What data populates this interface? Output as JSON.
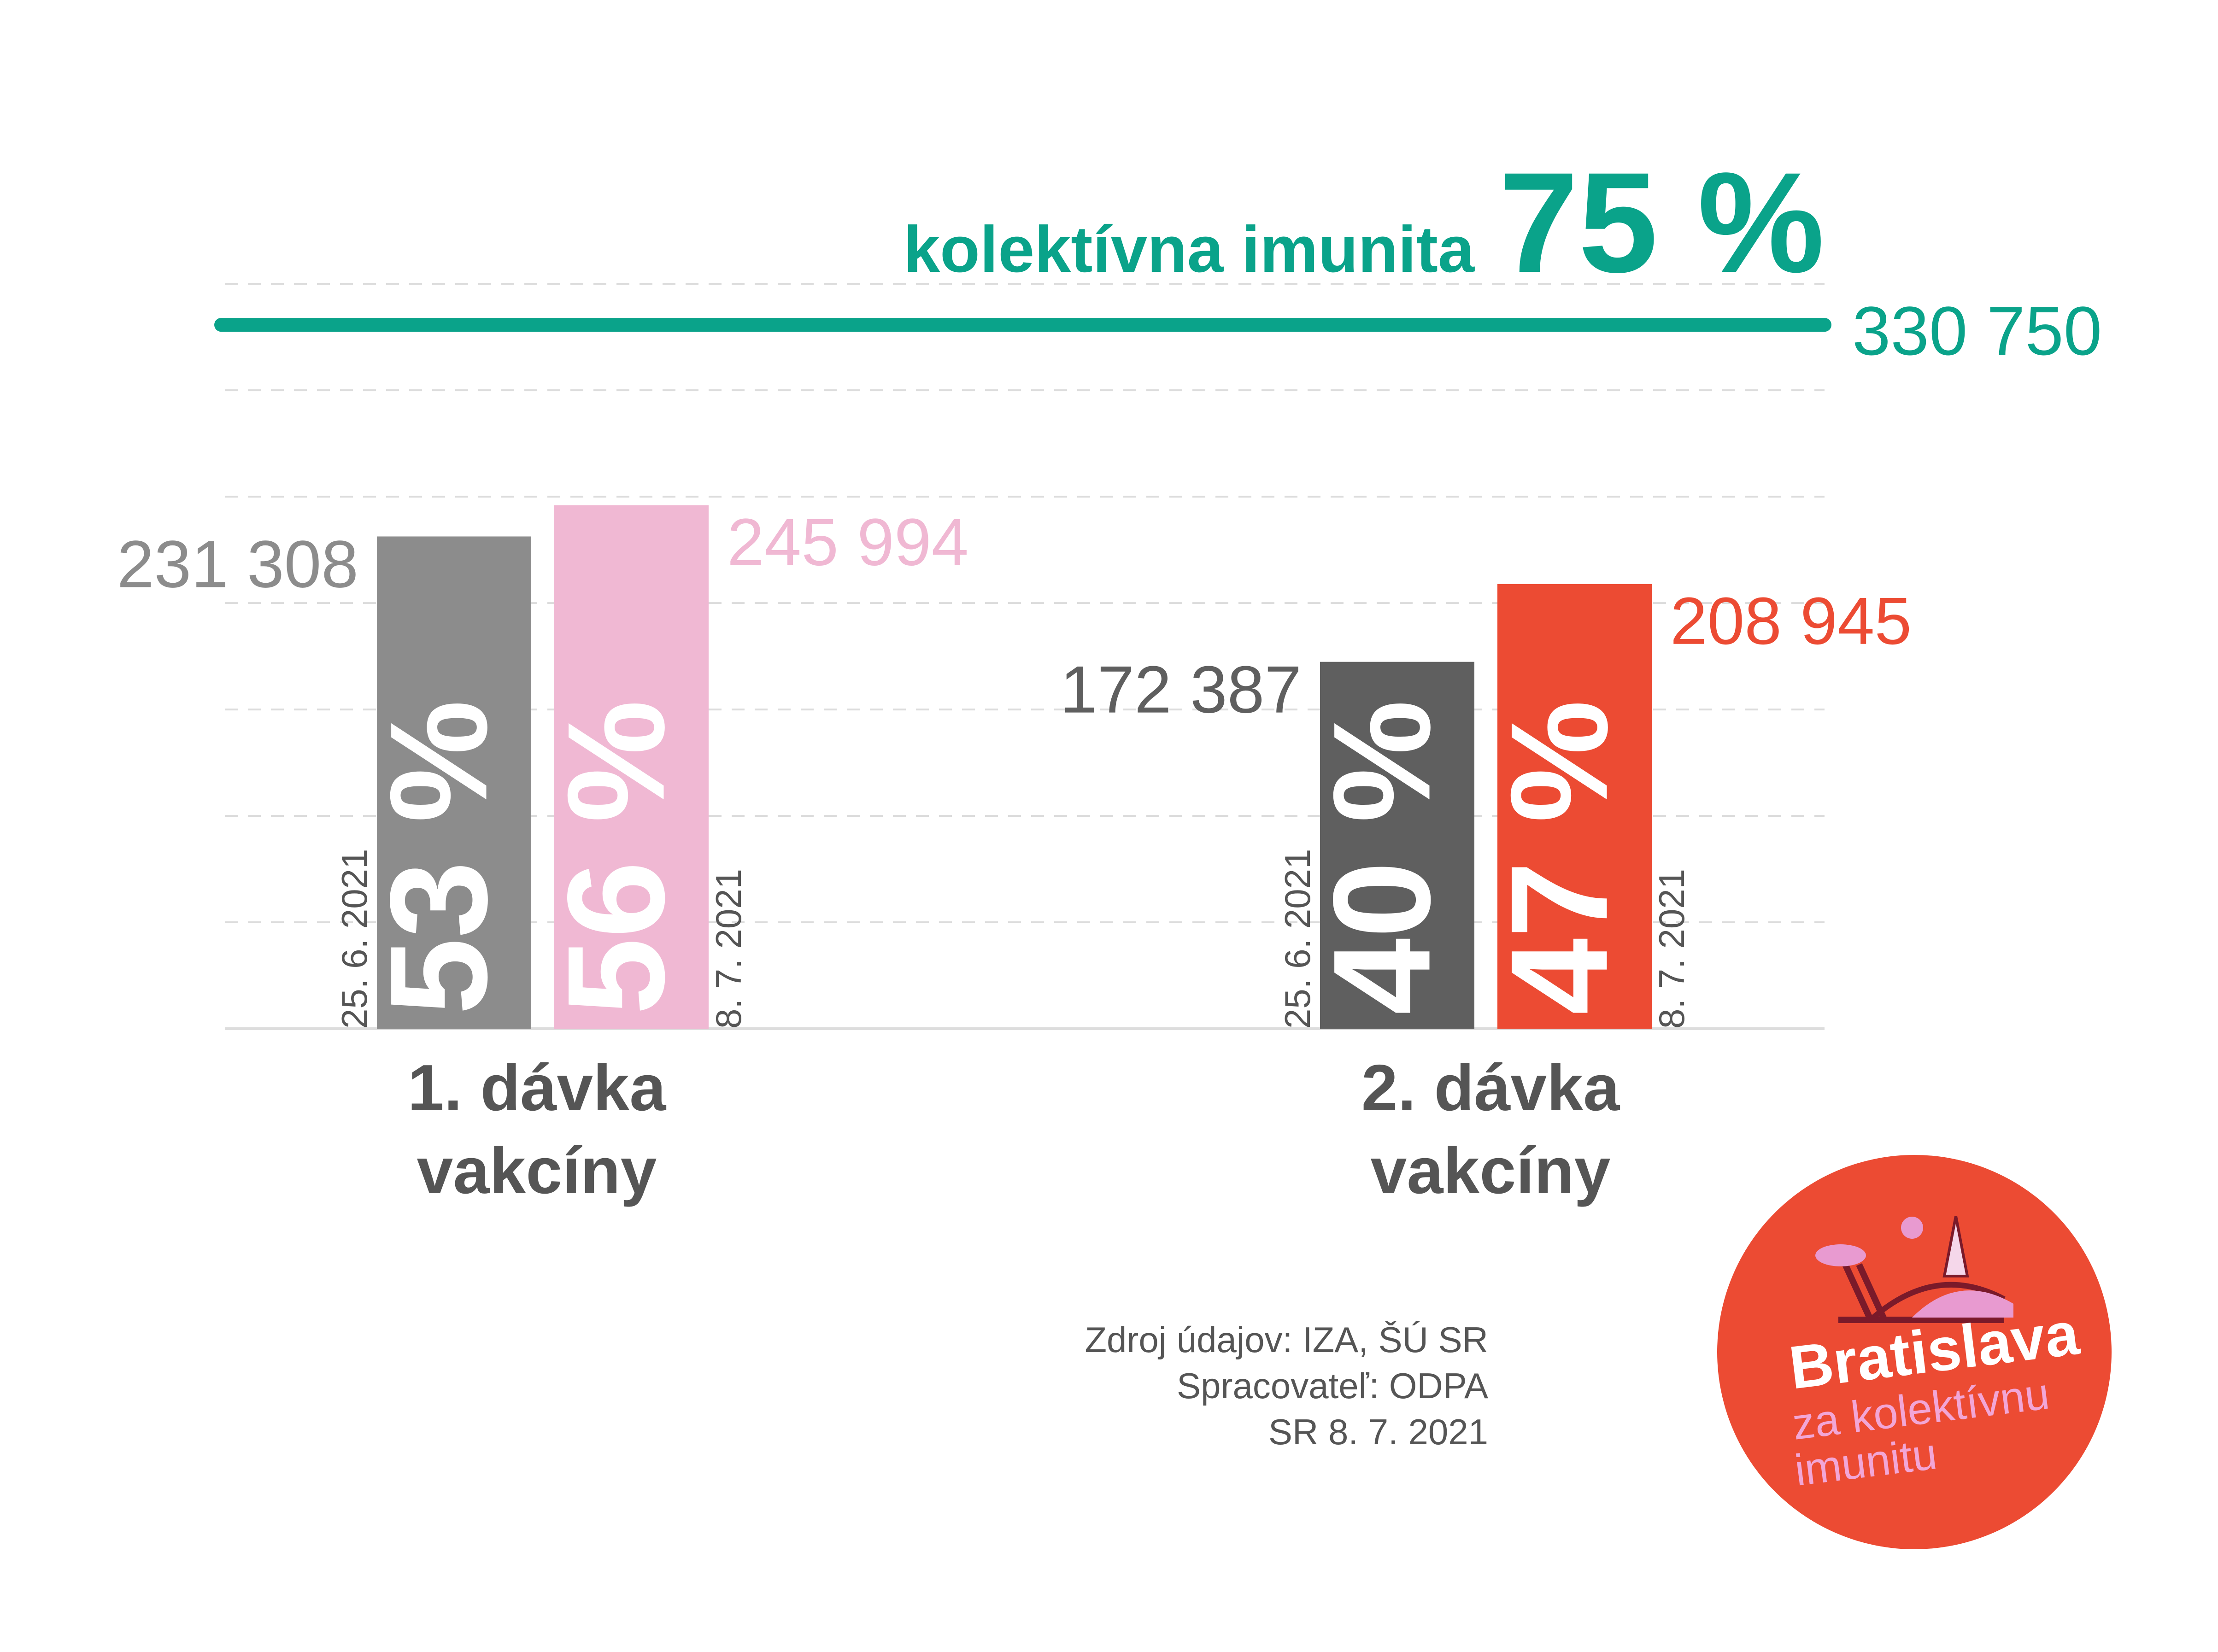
{
  "chart_data": {
    "type": "bar",
    "categories": [
      "1. dávka vakcíny",
      "2. dávka vakcíny"
    ],
    "category_lines": [
      [
        "1. dávka",
        "vakcíny"
      ],
      [
        "2. dávka",
        "vakcíny"
      ]
    ],
    "series": [
      {
        "name": "25. 6. 2021",
        "values": [
          231308,
          172387
        ],
        "value_labels": [
          "231 308",
          "172 387"
        ],
        "percent_labels": [
          "53 %",
          "40 %"
        ],
        "colors": [
          "#8c8c8c",
          "#5f5f5f"
        ],
        "label_colors": [
          "#8c8c8c",
          "#5f5f5f"
        ]
      },
      {
        "name": "8. 7. 2021",
        "values": [
          245994,
          208945
        ],
        "value_labels": [
          "245 994",
          "208 945"
        ],
        "percent_labels": [
          "56 %",
          "47 %"
        ],
        "colors": [
          "#f0b8d3",
          "#ec4b33"
        ],
        "label_colors": [
          "#f0b8d3",
          "#ec4b33"
        ]
      }
    ],
    "reference_line": {
      "value": 330750,
      "value_label": "330 750",
      "label": "kolektívna imunita",
      "percent": "75 %",
      "color": "#0aa38a"
    },
    "ylim": [
      0,
      360000
    ],
    "grid": true
  },
  "source": {
    "lines": [
      "Zdroj údajov: IZA, ŠÚ SR",
      "Spracovateľ: ODPA",
      "SR 8. 7. 2021"
    ]
  },
  "logo": {
    "title": "Bratislava",
    "line1": "za kolektívnu",
    "line2": "imunitu",
    "bg_color": "#ec4b33"
  }
}
